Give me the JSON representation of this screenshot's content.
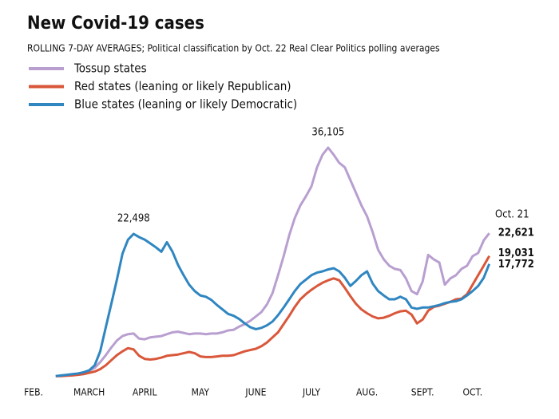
{
  "chart_data": {
    "type": "line",
    "title": "New Covid-19 cases",
    "subtitle": "ROLLING 7-DAY AVERAGES; Political classification by Oct. 22 Real Clear Politics polling averages",
    "annotation": "Oct. 21",
    "categories": [
      "FEB.",
      null,
      null,
      null,
      null,
      null,
      null,
      null,
      null,
      null,
      "MARCH",
      null,
      null,
      null,
      null,
      null,
      null,
      null,
      null,
      null,
      "APRIL",
      null,
      null,
      null,
      null,
      null,
      null,
      null,
      null,
      null,
      "MAY",
      null,
      null,
      null,
      null,
      null,
      null,
      null,
      null,
      null,
      "JUNE",
      null,
      null,
      null,
      null,
      null,
      null,
      null,
      null,
      null,
      "JULY",
      null,
      null,
      null,
      null,
      null,
      null,
      null,
      null,
      null,
      "AUG.",
      null,
      null,
      null,
      null,
      null,
      null,
      null,
      null,
      null,
      "SEPT.",
      null,
      null,
      null,
      null,
      null,
      null,
      null,
      null,
      "OCT.",
      null,
      null,
      null
    ],
    "ylim": [
      0,
      40000
    ],
    "series": [
      {
        "name": "Tossup states",
        "color": "#b89fd0",
        "values": [
          null,
          null,
          null,
          null,
          100,
          150,
          200,
          300,
          400,
          600,
          900,
          1400,
          2300,
          3400,
          4600,
          5700,
          6400,
          6700,
          6800,
          6000,
          5900,
          6200,
          6300,
          6400,
          6700,
          7000,
          7100,
          6900,
          6700,
          6800,
          6800,
          6700,
          6800,
          6800,
          7000,
          7300,
          7400,
          7900,
          8300,
          8800,
          9500,
          10200,
          11400,
          13200,
          16000,
          19000,
          22300,
          25000,
          27000,
          28400,
          30000,
          33000,
          35000,
          36105,
          35000,
          33700,
          33000,
          31000,
          29000,
          27000,
          25300,
          22800,
          20000,
          18500,
          17500,
          17000,
          16800,
          15500,
          13500,
          13000,
          15000,
          19200,
          18500,
          18000,
          14500,
          15500,
          16000,
          17000,
          17500,
          19000,
          19500,
          21500,
          22621
        ],
        "value_labels": [
          null,
          null,
          null,
          null,
          null,
          null,
          null,
          null,
          null,
          null,
          null,
          null,
          null,
          null,
          null,
          null,
          null,
          null,
          null,
          null,
          null,
          null,
          null,
          null,
          null,
          null,
          null,
          null,
          null,
          null,
          null,
          null,
          null,
          null,
          null,
          null,
          null,
          null,
          null,
          null,
          null,
          null,
          null,
          null,
          null,
          null,
          null,
          null,
          null,
          null,
          null,
          null,
          null,
          "36,105",
          null,
          null,
          null,
          null,
          null,
          null,
          null,
          null,
          null,
          null,
          null,
          null,
          null,
          null,
          null,
          null,
          null,
          null,
          null,
          null,
          null,
          null,
          null,
          null,
          null,
          null,
          null,
          null,
          "22,621"
        ]
      },
      {
        "name": "Red states (leaning or likely Republican)",
        "color": "#d9573a",
        "values": [
          null,
          null,
          null,
          null,
          100,
          100,
          150,
          200,
          300,
          400,
          600,
          800,
          1200,
          1800,
          2600,
          3400,
          4000,
          4500,
          4300,
          3300,
          2800,
          2700,
          2800,
          3000,
          3300,
          3400,
          3500,
          3700,
          3900,
          3700,
          3200,
          3100,
          3100,
          3200,
          3300,
          3300,
          3400,
          3700,
          4000,
          4200,
          4400,
          4800,
          5400,
          6200,
          7000,
          8300,
          9600,
          11000,
          12200,
          13000,
          13700,
          14300,
          14800,
          15200,
          15500,
          15200,
          14000,
          12700,
          11500,
          10600,
          10000,
          9500,
          9200,
          9300,
          9600,
          10000,
          10300,
          10400,
          9800,
          8400,
          9000,
          10400,
          11000,
          11200,
          11500,
          11800,
          12200,
          12300,
          13000,
          14500,
          16000,
          17500,
          19031
        ],
        "value_labels": [
          null,
          null,
          null,
          null,
          null,
          null,
          null,
          null,
          null,
          null,
          null,
          null,
          null,
          null,
          null,
          null,
          null,
          null,
          null,
          null,
          null,
          null,
          null,
          null,
          null,
          null,
          null,
          null,
          null,
          null,
          null,
          null,
          null,
          null,
          null,
          null,
          null,
          null,
          null,
          null,
          null,
          null,
          null,
          null,
          null,
          null,
          null,
          null,
          null,
          null,
          null,
          null,
          null,
          null,
          null,
          null,
          null,
          null,
          null,
          null,
          null,
          null,
          null,
          null,
          null,
          null,
          null,
          null,
          null,
          null,
          null,
          null,
          null,
          null,
          null,
          null,
          null,
          null,
          null,
          null,
          null,
          null,
          "19,031"
        ]
      },
      {
        "name": "Blue states (leaning or likely Democratic)",
        "color": "#2f86c1",
        "values": [
          null,
          null,
          null,
          null,
          100,
          200,
          300,
          400,
          500,
          700,
          1000,
          1800,
          4000,
          7800,
          11500,
          15300,
          19400,
          21600,
          22498,
          22000,
          21600,
          21000,
          20400,
          19700,
          21200,
          19700,
          17600,
          16000,
          14500,
          13500,
          12800,
          12600,
          12100,
          11300,
          10600,
          9900,
          9600,
          9100,
          8400,
          7800,
          7500,
          7700,
          8100,
          8700,
          9700,
          10900,
          12200,
          13500,
          14600,
          15300,
          16000,
          16400,
          16600,
          16900,
          17100,
          16600,
          15600,
          14300,
          15100,
          16000,
          16600,
          14700,
          13500,
          12800,
          12200,
          12200,
          12600,
          12200,
          10900,
          10700,
          10900,
          10900,
          11100,
          11300,
          11600,
          11800,
          11900,
          12200,
          12800,
          13500,
          14300,
          15600,
          17772
        ],
        "value_labels": [
          null,
          null,
          null,
          null,
          null,
          null,
          null,
          null,
          null,
          null,
          null,
          null,
          null,
          null,
          null,
          null,
          null,
          null,
          "22,498",
          null,
          null,
          null,
          null,
          null,
          null,
          null,
          null,
          null,
          null,
          null,
          null,
          null,
          null,
          null,
          null,
          null,
          null,
          null,
          null,
          null,
          null,
          null,
          null,
          null,
          null,
          null,
          null,
          null,
          null,
          null,
          null,
          null,
          null,
          null,
          null,
          null,
          null,
          null,
          null,
          null,
          null,
          null,
          null,
          null,
          null,
          null,
          null,
          null,
          null,
          null,
          null,
          null,
          null,
          null,
          null,
          null,
          null,
          null,
          null,
          null,
          null,
          null,
          "17,772"
        ]
      }
    ]
  }
}
